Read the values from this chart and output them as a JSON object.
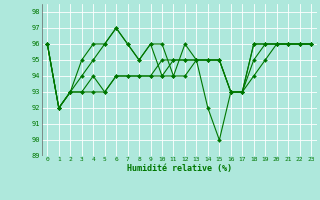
{
  "xlabel": "Humidité relative (%)",
  "xlim": [
    -0.5,
    23.5
  ],
  "ylim": [
    89,
    98.5
  ],
  "yticks": [
    89,
    90,
    91,
    92,
    93,
    94,
    95,
    96,
    97,
    98
  ],
  "xticks": [
    0,
    1,
    2,
    3,
    4,
    5,
    6,
    7,
    8,
    9,
    10,
    11,
    12,
    13,
    14,
    15,
    16,
    17,
    18,
    19,
    20,
    21,
    22,
    23
  ],
  "bg_color": "#aee8dc",
  "grid_color": "#ffffff",
  "line_color": "#007700",
  "s_spiky": [
    96,
    92,
    93,
    94,
    95,
    96,
    97,
    96,
    95,
    96,
    94,
    94,
    96,
    95,
    92,
    90,
    93,
    93,
    96,
    96,
    96,
    96,
    96,
    96
  ],
  "s_spiky2": [
    96,
    92,
    93,
    95,
    96,
    96,
    97,
    96,
    95,
    96,
    96,
    94,
    94,
    95,
    95,
    95,
    93,
    93,
    96,
    96,
    96,
    96,
    96,
    96
  ],
  "s_trend1": [
    96,
    92,
    93,
    93,
    94,
    93,
    94,
    94,
    94,
    94,
    94,
    95,
    95,
    95,
    95,
    95,
    93,
    93,
    95,
    96,
    96,
    96,
    96,
    96
  ],
  "s_trend2": [
    96,
    92,
    93,
    93,
    93,
    93,
    94,
    94,
    94,
    94,
    95,
    95,
    95,
    95,
    95,
    95,
    93,
    93,
    94,
    95,
    96,
    96,
    96,
    96
  ]
}
